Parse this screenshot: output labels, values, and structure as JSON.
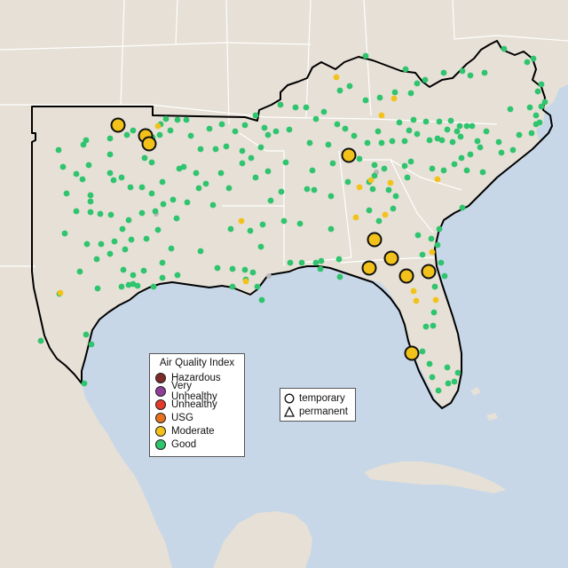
{
  "legend": {
    "title": "Air Quality Index",
    "categories": [
      {
        "label": "Hazardous",
        "color": "#7e2a2a"
      },
      {
        "label": "Very Unhealthy",
        "color": "#8f3f97"
      },
      {
        "label": "Unhealthy",
        "color": "#e5392b"
      },
      {
        "label": "USG",
        "color": "#e8731e"
      },
      {
        "label": "Moderate",
        "color": "#f2c21b"
      },
      {
        "label": "Good",
        "color": "#2fc46e"
      }
    ]
  },
  "type_legend": {
    "items": [
      {
        "label": "temporary",
        "shape": "circle-icon"
      },
      {
        "label": "permanent",
        "shape": "triangle-icon"
      }
    ]
  },
  "colors": {
    "ocean": "#c7d7e8",
    "land": "#e6e0d6",
    "state_border": "#ffffff",
    "region_outline": "#000000",
    "good": "#2fc46e",
    "moderate": "#f2c21b",
    "inactive": "#b8b8b8"
  }
}
